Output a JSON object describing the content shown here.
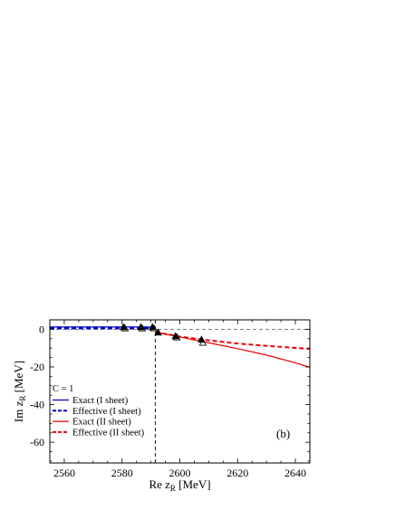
{
  "chart_data": {
    "type": "line",
    "panel_label": "(b)",
    "xlabel": "Re z",
    "xlabel_sub": "R",
    "xlabel_unit": " [MeV]",
    "ylabel": "Im z",
    "ylabel_sub": "R",
    "ylabel_unit": " [MeV]",
    "xlim": [
      2555,
      2645
    ],
    "ylim": [
      -71,
      5
    ],
    "xticks": [
      2560,
      2580,
      2600,
      2620,
      2640
    ],
    "yticks": [
      0,
      -20,
      -40,
      -60
    ],
    "threshold_x": 2591.5,
    "reference_y": 0,
    "legend": {
      "title": "C = 1",
      "placement": "bottom-left",
      "entries": [
        {
          "label": "Exact (I sheet)",
          "color": "#0000cc",
          "style": "solid"
        },
        {
          "label": "Effective (I sheet)",
          "color": "#0000cc",
          "style": "dashed"
        },
        {
          "label": "Exact (II sheet)",
          "color": "#ee0000",
          "style": "solid"
        },
        {
          "label": "Effective (II sheet)",
          "color": "#ee0000",
          "style": "dashed"
        }
      ]
    },
    "series": [
      {
        "color": "#0000cc",
        "style": "solid",
        "width": 1.2,
        "x": [
          2555,
          2591.5
        ],
        "y": [
          1.2,
          1.2
        ]
      },
      {
        "color": "#0000cc",
        "style": "dashed",
        "width": 2,
        "x": [
          2555,
          2591.5
        ],
        "y": [
          0.4,
          0.4
        ]
      },
      {
        "color": "#ee0000",
        "style": "solid",
        "width": 1.2,
        "x": [
          2591.5,
          2600,
          2610,
          2620,
          2630,
          2640,
          2645
        ],
        "y": [
          -1.5,
          -4.1,
          -7.2,
          -10.3,
          -13.7,
          -17.8,
          -20.2
        ]
      },
      {
        "color": "#ee0000",
        "style": "dashed",
        "width": 2,
        "x": [
          2591.5,
          2600,
          2610,
          2620,
          2630,
          2640,
          2645
        ],
        "y": [
          -1.5,
          -3.9,
          -5.9,
          -7.6,
          -8.8,
          -9.9,
          -10.4
        ]
      }
    ],
    "markers": {
      "filled": [
        {
          "x": 2580.5,
          "y": 1.0
        },
        {
          "x": 2586.5,
          "y": 1.0
        },
        {
          "x": 2590.5,
          "y": 1.0
        },
        {
          "x": 2592.5,
          "y": -1.8
        },
        {
          "x": 2598.5,
          "y": -3.8
        },
        {
          "x": 2607.5,
          "y": -5.6
        }
      ],
      "open": [
        {
          "x": 2581,
          "y": 0.4
        },
        {
          "x": 2587,
          "y": 0.4
        },
        {
          "x": 2591,
          "y": 0.4
        },
        {
          "x": 2599,
          "y": -4.4
        },
        {
          "x": 2608,
          "y": -7.2
        }
      ]
    }
  }
}
